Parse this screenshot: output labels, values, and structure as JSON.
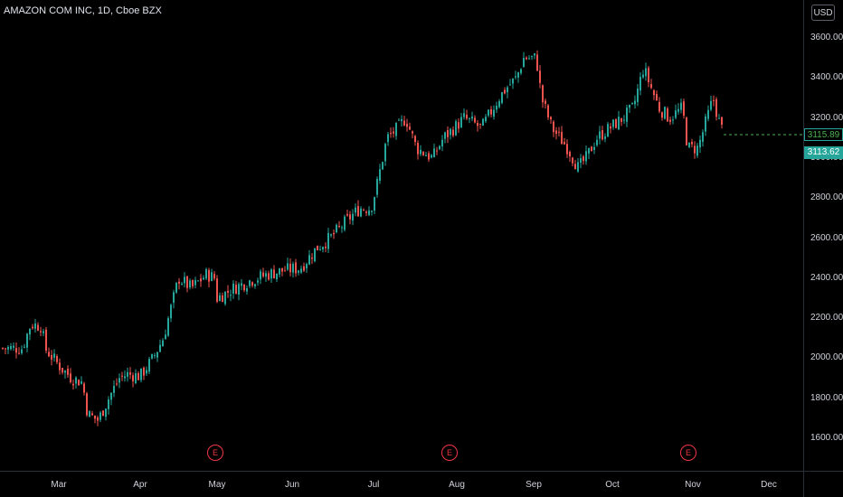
{
  "header": {
    "title": "AMAZON COM INC, 1D, Cboe BZX",
    "currency_button": "USD"
  },
  "colors": {
    "up": "#26a69a",
    "down": "#ef5350",
    "background": "#000000",
    "axis": "#2a2e39",
    "last_price_line": "#4caf50"
  },
  "price_labels": {
    "last": "3115.89",
    "close": "3113.62"
  },
  "earnings_markers": [
    {
      "label": "E",
      "x": "May"
    },
    {
      "label": "E",
      "x": "Aug"
    },
    {
      "label": "E",
      "x": "Nov"
    }
  ],
  "chart_data": {
    "type": "candlestick",
    "title": "AMAZON COM INC, 1D, Cboe BZX",
    "currency": "USD",
    "y_ticks": [
      "3600.00",
      "3400.00",
      "3200.00",
      "3000.00",
      "2800.00",
      "2600.00",
      "2400.00",
      "2200.00",
      "2000.00",
      "1800.00",
      "1600.00"
    ],
    "x_ticks": [
      "Mar",
      "Apr",
      "May",
      "Jun",
      "Jul",
      "Aug",
      "Sep",
      "Oct",
      "Nov",
      "Dec"
    ],
    "ylim": [
      1420,
      3760
    ],
    "grid": false,
    "close_path": [
      [
        "Feb 17",
        2050
      ],
      [
        "Feb 20",
        2170
      ],
      [
        "Feb 24",
        2160
      ],
      [
        "Feb 25",
        2050
      ],
      [
        "Mar 2",
        1950
      ],
      [
        "Mar 6",
        1900
      ],
      [
        "Mar 10",
        1880
      ],
      [
        "Mar 12",
        1720
      ],
      [
        "Mar 16",
        1690
      ],
      [
        "Mar 20",
        1800
      ],
      [
        "Mar 24",
        1900
      ],
      [
        "Mar 27",
        1920
      ],
      [
        "Apr 1",
        1910
      ],
      [
        "Apr 6",
        2000
      ],
      [
        "Apr 10",
        2100
      ],
      [
        "Apr 14",
        2300
      ],
      [
        "Apr 16",
        2400
      ],
      [
        "Apr 21",
        2350
      ],
      [
        "Apr 27",
        2420
      ],
      [
        "Apr 30",
        2400
      ],
      [
        "May 1",
        2300
      ],
      [
        "May 8",
        2350
      ],
      [
        "May 15",
        2390
      ],
      [
        "May 22",
        2420
      ],
      [
        "May 29",
        2440
      ],
      [
        "Jun 4",
        2450
      ],
      [
        "Jun 10",
        2550
      ],
      [
        "Jun 15",
        2600
      ],
      [
        "Jun 22",
        2700
      ],
      [
        "Jun 26",
        2750
      ],
      [
        "Jun 30",
        2750
      ],
      [
        "Jul 2",
        2850
      ],
      [
        "Jul 6",
        3100
      ],
      [
        "Jul 10",
        3150
      ],
      [
        "Jul 13",
        3200
      ],
      [
        "Jul 17",
        3050
      ],
      [
        "Jul 23",
        3000
      ],
      [
        "Jul 27",
        3100
      ],
      [
        "Jul 31",
        3150
      ],
      [
        "Aug 4",
        3200
      ],
      [
        "Aug 11",
        3150
      ],
      [
        "Aug 18",
        3300
      ],
      [
        "Aug 21",
        3350
      ],
      [
        "Aug 25",
        3400
      ],
      [
        "Aug 28",
        3500
      ],
      [
        "Sep 2",
        3500
      ],
      [
        "Sep 4",
        3300
      ],
      [
        "Sep 8",
        3150
      ],
      [
        "Sep 14",
        3050
      ],
      [
        "Sep 18",
        2950
      ],
      [
        "Sep 21",
        3000
      ],
      [
        "Sep 25",
        3100
      ],
      [
        "Sep 30",
        3150
      ],
      [
        "Oct 5",
        3200
      ],
      [
        "Oct 9",
        3250
      ],
      [
        "Oct 13",
        3450
      ],
      [
        "Oct 19",
        3250
      ],
      [
        "Oct 23",
        3200
      ],
      [
        "Oct 28",
        3250
      ],
      [
        "Oct 30",
        3050
      ],
      [
        "Nov 3",
        3050
      ],
      [
        "Nov 9",
        3300
      ],
      [
        "Nov 12",
        3150
      ],
      [
        "Nov 16",
        3110
      ]
    ]
  }
}
